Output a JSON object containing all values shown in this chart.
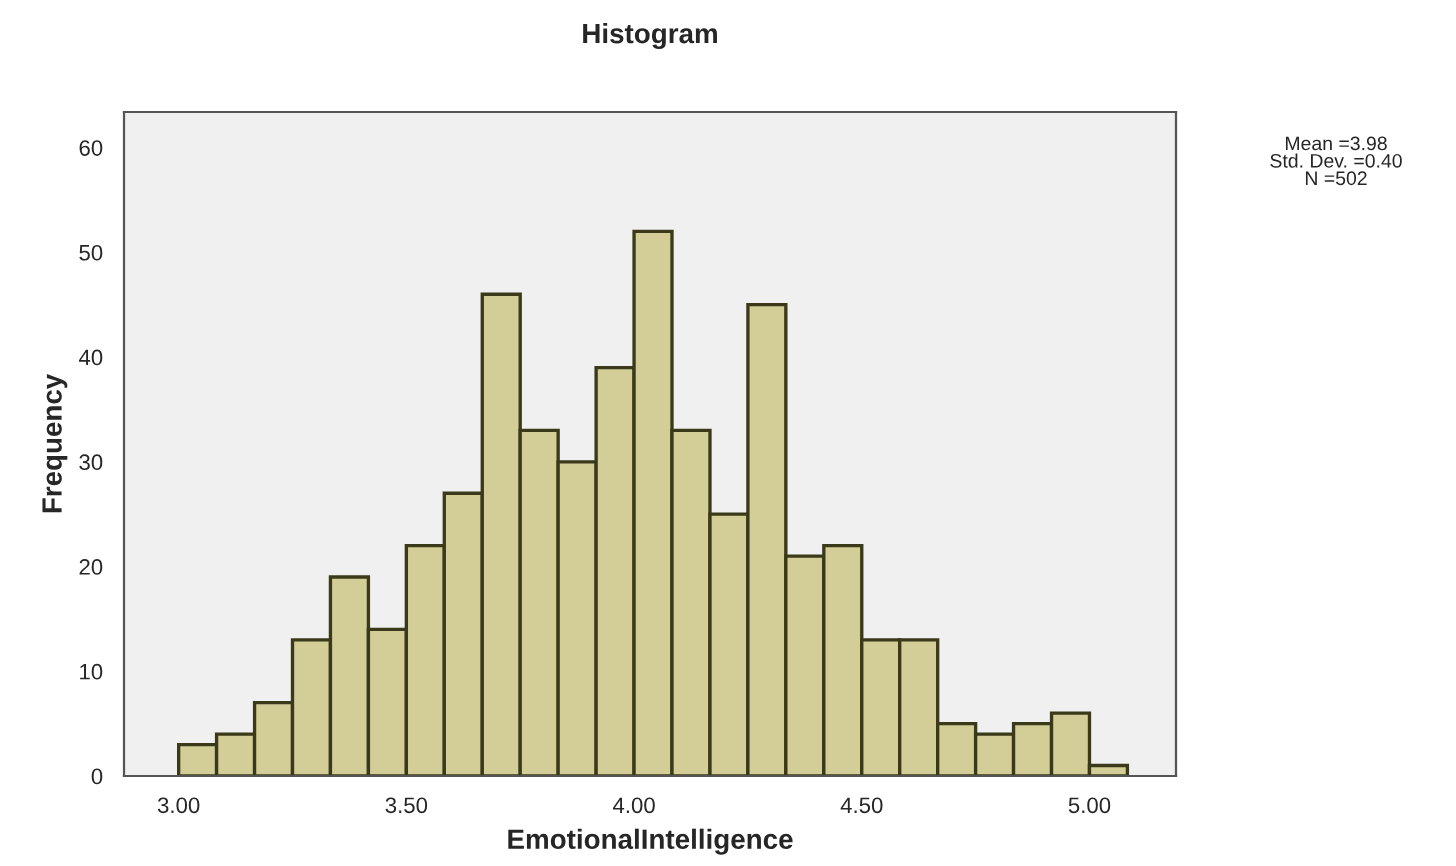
{
  "chart_data": {
    "type": "histogram",
    "title": "Histogram",
    "xlabel": "EmotionalIntelligence",
    "ylabel": "Frequency",
    "bins": [
      3.0,
      3.0833,
      3.1667,
      3.25,
      3.3333,
      3.4167,
      3.5,
      3.5833,
      3.6667,
      3.75,
      3.8333,
      3.9167,
      4.0,
      4.0833,
      4.1667,
      4.25,
      4.3333,
      4.4167,
      4.5,
      4.5833,
      4.6667,
      4.75,
      4.8333,
      4.9167,
      5.0,
      5.0833
    ],
    "values": [
      3,
      4,
      7,
      13,
      19,
      14,
      22,
      27,
      46,
      33,
      30,
      39,
      52,
      33,
      25,
      45,
      21,
      22,
      13,
      13,
      5,
      4,
      5,
      6,
      1
    ],
    "color": "#d3cd98",
    "xlim": [
      2.88,
      5.19
    ],
    "xticks": [
      {
        "value": 3,
        "label": "3.00"
      },
      {
        "value": 3.5,
        "label": "3.50"
      },
      {
        "value": 4,
        "label": "4.00"
      },
      {
        "value": 4.5,
        "label": "4.50"
      },
      {
        "value": 5,
        "label": "5.00"
      }
    ],
    "ylim": [
      0,
      63.4
    ],
    "yticks": [
      0,
      10,
      20,
      30,
      40,
      50,
      60
    ],
    "grid": false,
    "annotations": [
      "Mean =3.98\nStd. Dev. =0.40\nN =502"
    ]
  }
}
